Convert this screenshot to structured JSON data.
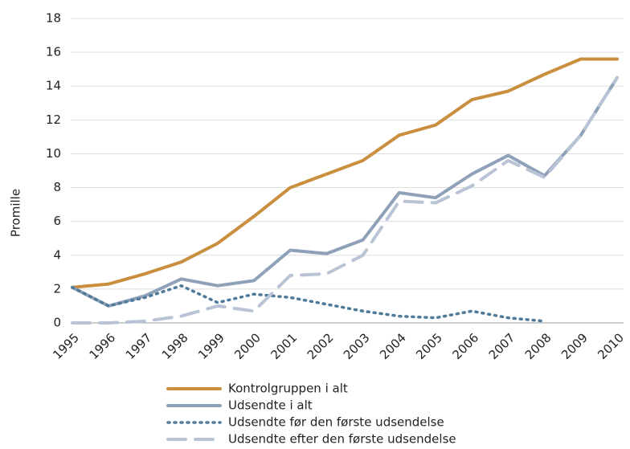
{
  "chart_data": {
    "type": "line",
    "y_label": "Promille",
    "categories": [
      "1995",
      "1996",
      "1997",
      "1998",
      "1999",
      "2000",
      "2001",
      "2002",
      "2003",
      "2004",
      "2005",
      "2006",
      "2007",
      "2008",
      "2009",
      "2010"
    ],
    "series": [
      {
        "name": "Kontrolgruppen i alt",
        "color": "#c98f3f",
        "style": "solid",
        "values": [
          2.1,
          2.3,
          2.9,
          3.6,
          4.7,
          6.3,
          8.0,
          8.8,
          9.6,
          11.1,
          11.7,
          13.2,
          13.7,
          14.7,
          15.6,
          15.6
        ]
      },
      {
        "name": "Udsendte i alt",
        "color": "#8ea1b8",
        "style": "solid",
        "values": [
          2.1,
          1.0,
          1.6,
          2.6,
          2.2,
          2.5,
          4.3,
          4.1,
          4.9,
          7.7,
          7.4,
          8.8,
          9.9,
          8.7,
          11.1,
          14.5
        ]
      },
      {
        "name": "Udsendte før den første udsendelse",
        "color": "#4f7a9a",
        "style": "dot",
        "values": [
          2.1,
          1.0,
          1.5,
          2.2,
          1.2,
          1.7,
          1.5,
          1.1,
          0.7,
          0.4,
          0.3,
          0.7,
          0.3,
          0.1,
          null,
          null
        ]
      },
      {
        "name": "Udsendte efter den første udsendelse",
        "color": "#b8c4d6",
        "style": "dash",
        "values": [
          0,
          0,
          0.1,
          0.4,
          1.0,
          0.7,
          2.8,
          2.9,
          4.0,
          7.2,
          7.1,
          8.1,
          9.6,
          8.6,
          11.1,
          14.5
        ]
      }
    ],
    "ylim": [
      0,
      18
    ],
    "yticks": [
      0,
      2,
      4,
      6,
      8,
      10,
      12,
      14,
      16,
      18
    ],
    "grid": true,
    "legend": "bottom"
  }
}
